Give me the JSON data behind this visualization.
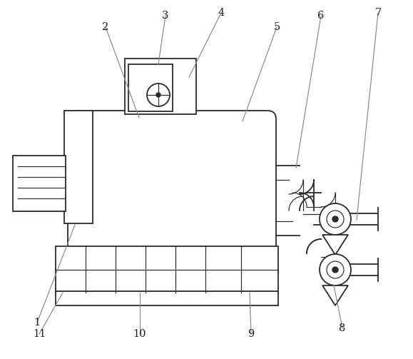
{
  "bg_color": "#ffffff",
  "line_color": "#2a2a2a",
  "label_color": "#1a1a1a",
  "fig_width": 5.79,
  "fig_height": 5.03,
  "lw_main": 1.3,
  "lw_thin": 0.85
}
